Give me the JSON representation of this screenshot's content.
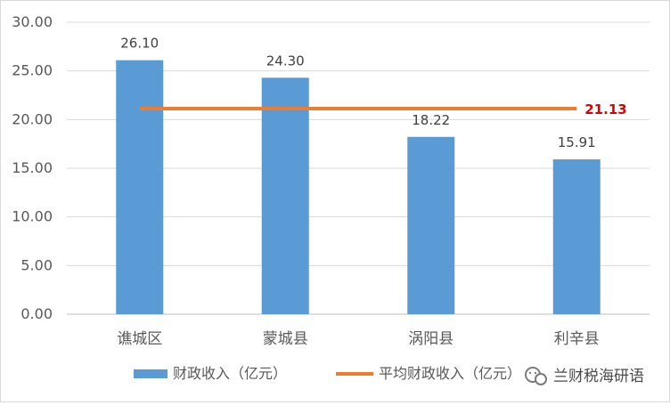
{
  "chart_data": {
    "type": "bar",
    "categories": [
      "谯城区",
      "蒙城县",
      "涡阳县",
      "利辛县"
    ],
    "series": [
      {
        "name": "财政收入（亿元）",
        "type": "bar",
        "values": [
          26.1,
          24.3,
          18.22,
          15.91
        ],
        "labels": [
          "26.10",
          "24.30",
          "18.22",
          "15.91"
        ]
      },
      {
        "name": "平均财政收入（亿元）",
        "type": "line",
        "value": 21.13,
        "label": "21.13"
      }
    ],
    "y_ticks": [
      "0.00",
      "5.00",
      "10.00",
      "15.00",
      "20.00",
      "25.00",
      "30.00"
    ],
    "ylim": [
      0,
      30
    ],
    "grid": true,
    "legend_position": "bottom",
    "colors": {
      "bar": "#5b9bd5",
      "line": "#ed7d31",
      "avg_label": "#e00000",
      "grid": "#d9d9d9",
      "text": "#595959"
    }
  },
  "watermark": {
    "icon": "wechat-icon",
    "text": "兰财税海研语"
  }
}
